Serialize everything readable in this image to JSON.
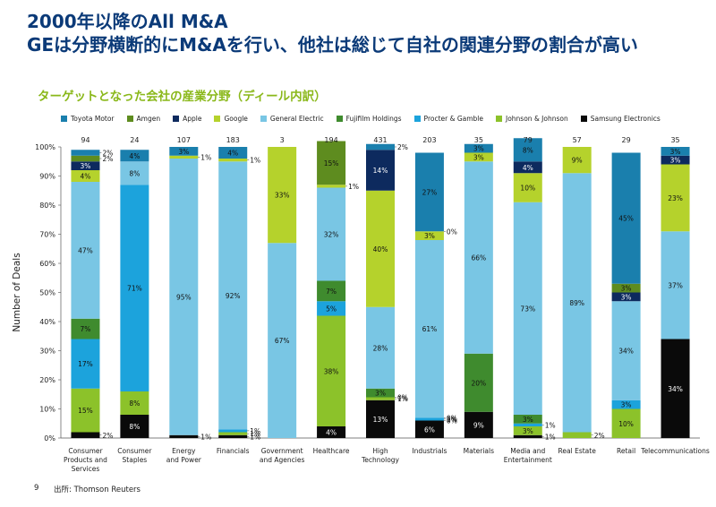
{
  "header": {
    "title_line1": "2000年以降のAll M&A",
    "title_line2": "GEは分野横断的にM&Aを行い、他社は総じて自社の関連分野の割合が高い"
  },
  "subtitle": "ターゲットとなった会社の産業分野（ディール内訳）",
  "footer": {
    "page": "9",
    "source": "出所: Thomson Reuters"
  },
  "chart_data": {
    "type": "bar",
    "stacked": true,
    "ylabel": "Number of Deals",
    "ylim": [
      0,
      100
    ],
    "yticks": [
      "0%",
      "10%",
      "20%",
      "30%",
      "40%",
      "50%",
      "60%",
      "70%",
      "80%",
      "90%",
      "100%"
    ],
    "legend_position": "top",
    "series": [
      {
        "name": "Toyota Motor",
        "color": "#1a7fad"
      },
      {
        "name": "Amgen",
        "color": "#5e8c1f"
      },
      {
        "name": "Apple",
        "color": "#0d2a5e"
      },
      {
        "name": "Google",
        "color": "#b5d22c"
      },
      {
        "name": "General Electric",
        "color": "#79c6e4"
      },
      {
        "name": "Fujifilm Holdings",
        "color": "#3f8b2e"
      },
      {
        "name": "Procter & Gamble",
        "color": "#1ca3dc"
      },
      {
        "name": "Johnson & Johnson",
        "color": "#8cc22a"
      },
      {
        "name": "Samsung Electronics",
        "color": "#0a0a0a"
      }
    ],
    "categories": [
      {
        "label": [
          "Consumer",
          "Products and",
          "Services"
        ],
        "total": "94",
        "segments": [
          {
            "s": 8,
            "v": 2,
            "label": "2%"
          },
          {
            "s": 7,
            "v": 15,
            "label": "15%"
          },
          {
            "s": 6,
            "v": 17,
            "label": "17%"
          },
          {
            "s": 5,
            "v": 7,
            "label": "7%"
          },
          {
            "s": 4,
            "v": 47,
            "label": "47%"
          },
          {
            "s": 3,
            "v": 4,
            "label": "4%"
          },
          {
            "s": 2,
            "v": 3,
            "label": "3%"
          },
          {
            "s": 1,
            "v": 2,
            "label": "2%"
          },
          {
            "s": 0,
            "v": 2,
            "label": "2%"
          }
        ]
      },
      {
        "label": [
          "Consumer",
          "Staples"
        ],
        "total": "24",
        "segments": [
          {
            "s": 8,
            "v": 8,
            "label": "8%"
          },
          {
            "s": 7,
            "v": 8,
            "label": "8%"
          },
          {
            "s": 6,
            "v": 71,
            "label": "71%"
          },
          {
            "s": 4,
            "v": 8,
            "label": "8%"
          },
          {
            "s": 0,
            "v": 4,
            "label": "4%"
          }
        ]
      },
      {
        "label": [
          "Energy",
          "and Power"
        ],
        "total": "107",
        "segments": [
          {
            "s": 8,
            "v": 1,
            "label": "1%"
          },
          {
            "s": 4,
            "v": 95,
            "label": "95%"
          },
          {
            "s": 3,
            "v": 1,
            "label": "1%"
          },
          {
            "s": 0,
            "v": 3,
            "label": "3%"
          }
        ]
      },
      {
        "label": [
          "Financials"
        ],
        "total": "183",
        "segments": [
          {
            "s": 8,
            "v": 1,
            "label": "1%"
          },
          {
            "s": 7,
            "v": 1,
            "label": "1%"
          },
          {
            "s": 6,
            "v": 1,
            "label": "1%"
          },
          {
            "s": 4,
            "v": 92,
            "label": "92%"
          },
          {
            "s": 3,
            "v": 1,
            "label": "1%"
          },
          {
            "s": 0,
            "v": 4,
            "label": "4%"
          }
        ]
      },
      {
        "label": [
          "Government",
          "and Agencies"
        ],
        "total": "3",
        "segments": [
          {
            "s": 4,
            "v": 67,
            "label": "67%"
          },
          {
            "s": 3,
            "v": 33,
            "label": "33%"
          }
        ]
      },
      {
        "label": [
          "Healthcare"
        ],
        "total": "194",
        "segments": [
          {
            "s": 8,
            "v": 4,
            "label": "4%"
          },
          {
            "s": 7,
            "v": 38,
            "label": "38%"
          },
          {
            "s": 6,
            "v": 5,
            "label": "5%"
          },
          {
            "s": 5,
            "v": 7,
            "label": "7%"
          },
          {
            "s": 4,
            "v": 32,
            "label": "32%"
          },
          {
            "s": 3,
            "v": 1,
            "label": "1%"
          },
          {
            "s": 1,
            "v": 15,
            "label": "15%"
          }
        ]
      },
      {
        "label": [
          "High",
          "Technology"
        ],
        "total": "431",
        "segments": [
          {
            "s": 8,
            "v": 13,
            "label": "13%"
          },
          {
            "s": 7,
            "v": 1,
            "label": "1%"
          },
          {
            "s": 6,
            "v": 0,
            "label": "0%"
          },
          {
            "s": 5,
            "v": 3,
            "label": "3%"
          },
          {
            "s": 4,
            "v": 28,
            "label": "28%"
          },
          {
            "s": 3,
            "v": 40,
            "label": "40%"
          },
          {
            "s": 2,
            "v": 14,
            "label": "14%"
          },
          {
            "s": 0,
            "v": 2,
            "label": "2%"
          }
        ]
      },
      {
        "label": [
          "Industrials"
        ],
        "total": "203",
        "segments": [
          {
            "s": 8,
            "v": 6,
            "label": "6%"
          },
          {
            "s": 7,
            "v": 0,
            "label": "0%"
          },
          {
            "s": 6,
            "v": 1,
            "label": "1%"
          },
          {
            "s": 5,
            "v": 0,
            "label": "0%"
          },
          {
            "s": 4,
            "v": 61,
            "label": "61%"
          },
          {
            "s": 3,
            "v": 3,
            "label": "3%"
          },
          {
            "s": 2,
            "v": 0,
            "label": "0%"
          },
          {
            "s": 0,
            "v": 27,
            "label": "27%"
          }
        ]
      },
      {
        "label": [
          "Materials"
        ],
        "total": "35",
        "segments": [
          {
            "s": 8,
            "v": 9,
            "label": "9%"
          },
          {
            "s": 5,
            "v": 20,
            "label": "20%"
          },
          {
            "s": 4,
            "v": 66,
            "label": "66%"
          },
          {
            "s": 3,
            "v": 3,
            "label": "3%"
          },
          {
            "s": 0,
            "v": 3,
            "label": "3%"
          }
        ]
      },
      {
        "label": [
          "Media and",
          "Entertainment"
        ],
        "total": "79",
        "segments": [
          {
            "s": 8,
            "v": 1,
            "label": "1%"
          },
          {
            "s": 7,
            "v": 3,
            "label": "3%"
          },
          {
            "s": 6,
            "v": 1,
            "label": "1%"
          },
          {
            "s": 5,
            "v": 3,
            "label": "3%"
          },
          {
            "s": 4,
            "v": 73,
            "label": "73%"
          },
          {
            "s": 3,
            "v": 10,
            "label": "10%"
          },
          {
            "s": 2,
            "v": 4,
            "label": "4%"
          },
          {
            "s": 0,
            "v": 8,
            "label": "8%"
          }
        ]
      },
      {
        "label": [
          "Real Estate"
        ],
        "total": "57",
        "segments": [
          {
            "s": 7,
            "v": 2,
            "label": "2%"
          },
          {
            "s": 4,
            "v": 89,
            "label": "89%"
          },
          {
            "s": 3,
            "v": 9,
            "label": "9%"
          }
        ]
      },
      {
        "label": [
          "Retail"
        ],
        "total": "29",
        "segments": [
          {
            "s": 7,
            "v": 10,
            "label": "10%"
          },
          {
            "s": 6,
            "v": 3,
            "label": "3%"
          },
          {
            "s": 4,
            "v": 34,
            "label": "34%"
          },
          {
            "s": 2,
            "v": 3,
            "label": "3%"
          },
          {
            "s": 1,
            "v": 3,
            "label": "3%"
          },
          {
            "s": 0,
            "v": 45,
            "label": "45%"
          }
        ]
      },
      {
        "label": [
          "Telecommunications"
        ],
        "total": "35",
        "segments": [
          {
            "s": 8,
            "v": 34,
            "label": "34%"
          },
          {
            "s": 4,
            "v": 37,
            "label": "37%"
          },
          {
            "s": 3,
            "v": 23,
            "label": "23%"
          },
          {
            "s": 2,
            "v": 3,
            "label": "3%"
          },
          {
            "s": 0,
            "v": 3,
            "label": "3%"
          }
        ]
      }
    ]
  }
}
